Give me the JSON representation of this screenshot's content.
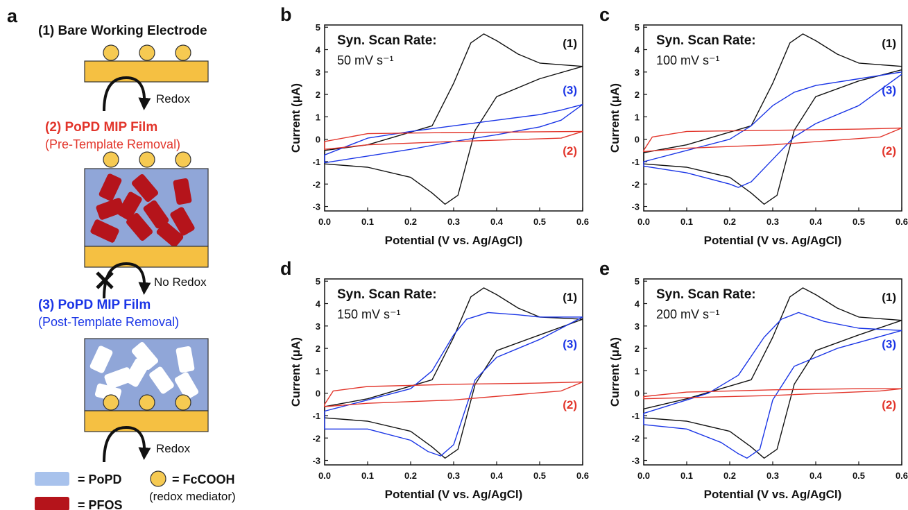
{
  "schematic": {
    "panel_letter": "a",
    "step1_title": "(1) Bare Working Electrode",
    "redox_label": "Redox",
    "step2_title": "(2) PoPD MIP Film",
    "step2_subtitle": "(Pre-Template Removal)",
    "no_redox_label": "No Redox",
    "step3_title": "(3) PoPD MIP Film",
    "step3_subtitle": "(Post-Template Removal)",
    "redox_label_2": "Redox",
    "legend_popd": "= PoPD",
    "legend_fcooh": "= FcCOOH",
    "legend_mediator": "(redox mediator)",
    "legend_pfos": "= PFOS",
    "colors": {
      "electrode": "#f5c042",
      "film": "#90a6d8",
      "pfos": "#b5141b",
      "step2": "#e2352b",
      "step3": "#1a35e6",
      "mediator": "#f6ca52"
    }
  },
  "chart_data": [
    {
      "panel": "b",
      "type": "line",
      "annotation_title": "Syn. Scan Rate:",
      "annotation_rate": "50 mV s⁻¹",
      "xlabel": "Potential (V vs. Ag/AgCl)",
      "ylabel": "Current (μA)",
      "xlim": [
        0,
        0.6
      ],
      "ylim": [
        -3.2,
        5.1
      ],
      "xticks": [
        "0.0",
        "0.1",
        "0.2",
        "0.3",
        "0.4",
        "0.5",
        "0.6"
      ],
      "yticks": [
        "-3",
        "-2",
        "-1",
        "0",
        "1",
        "2",
        "3",
        "4",
        "5"
      ],
      "series": [
        {
          "name": "(1)",
          "color": "#111111",
          "x": [
            0.6,
            0.5,
            0.45,
            0.4,
            0.37,
            0.34,
            0.3,
            0.25,
            0.1,
            0.0,
            0.0,
            0.1,
            0.2,
            0.25,
            0.28,
            0.31,
            0.35,
            0.4,
            0.5,
            0.6
          ],
          "y": [
            3.25,
            3.4,
            3.8,
            4.4,
            4.7,
            4.3,
            2.5,
            0.6,
            -0.25,
            -0.5,
            -1.1,
            -1.25,
            -1.7,
            -2.4,
            -2.9,
            -2.5,
            0.4,
            1.9,
            2.7,
            3.25
          ]
        },
        {
          "name": "(3)",
          "color": "#1a35e6",
          "x": [
            0.6,
            0.55,
            0.5,
            0.4,
            0.3,
            0.2,
            0.1,
            0.0,
            0.0,
            0.1,
            0.2,
            0.3,
            0.4,
            0.5,
            0.55,
            0.6
          ],
          "y": [
            1.55,
            1.3,
            1.1,
            0.85,
            0.6,
            0.35,
            0.05,
            -0.7,
            -1.05,
            -0.75,
            -0.45,
            -0.1,
            0.2,
            0.55,
            0.85,
            1.55
          ]
        },
        {
          "name": "(2)",
          "color": "#e2352b",
          "x": [
            0.6,
            0.3,
            0.1,
            0.0,
            0.0,
            0.1,
            0.3,
            0.55,
            0.6
          ],
          "y": [
            0.35,
            0.3,
            0.25,
            -0.1,
            -0.45,
            -0.25,
            -0.1,
            0.05,
            0.35
          ]
        }
      ]
    },
    {
      "panel": "c",
      "type": "line",
      "annotation_title": "Syn. Scan Rate:",
      "annotation_rate": "100 mV s⁻¹",
      "xlabel": "Potential (V vs. Ag/AgCl)",
      "ylabel": "Current (μA)",
      "xlim": [
        0,
        0.6
      ],
      "ylim": [
        -3.2,
        5.1
      ],
      "xticks": [
        "0.0",
        "0.1",
        "0.2",
        "0.3",
        "0.4",
        "0.5",
        "0.6"
      ],
      "yticks": [
        "-3",
        "-2",
        "-1",
        "0",
        "1",
        "2",
        "3",
        "4",
        "5"
      ],
      "series": [
        {
          "name": "(1)",
          "color": "#111111",
          "x": [
            0.6,
            0.5,
            0.45,
            0.4,
            0.37,
            0.34,
            0.3,
            0.25,
            0.1,
            0.0,
            0.0,
            0.1,
            0.2,
            0.25,
            0.28,
            0.31,
            0.35,
            0.4,
            0.5,
            0.6
          ],
          "y": [
            3.25,
            3.4,
            3.8,
            4.4,
            4.7,
            4.3,
            2.5,
            0.6,
            -0.25,
            -0.6,
            -1.1,
            -1.25,
            -1.7,
            -2.4,
            -2.9,
            -2.5,
            0.4,
            1.9,
            2.6,
            3.1
          ]
        },
        {
          "name": "(3)",
          "color": "#1a35e6",
          "x": [
            0.6,
            0.5,
            0.4,
            0.35,
            0.3,
            0.25,
            0.2,
            0.1,
            0.0,
            0.0,
            0.1,
            0.2,
            0.22,
            0.25,
            0.3,
            0.35,
            0.4,
            0.5,
            0.6
          ],
          "y": [
            3.0,
            2.7,
            2.4,
            2.1,
            1.5,
            0.6,
            0.0,
            -0.5,
            -1.0,
            -1.2,
            -1.5,
            -2.0,
            -2.15,
            -1.9,
            -0.9,
            0.1,
            0.7,
            1.5,
            2.9
          ]
        },
        {
          "name": "(2)",
          "color": "#e2352b",
          "x": [
            0.6,
            0.5,
            0.3,
            0.1,
            0.02,
            0.0,
            0.0,
            0.1,
            0.3,
            0.55,
            0.6
          ],
          "y": [
            0.5,
            0.45,
            0.4,
            0.35,
            0.1,
            -0.5,
            -0.55,
            -0.4,
            -0.25,
            0.1,
            0.5
          ]
        }
      ]
    },
    {
      "panel": "d",
      "type": "line",
      "annotation_title": "Syn. Scan Rate:",
      "annotation_rate": "150 mV s⁻¹",
      "xlabel": "Potential (V vs. Ag/AgCl)",
      "ylabel": "Current (μA)",
      "xlim": [
        0,
        0.6
      ],
      "ylim": [
        -3.2,
        5.1
      ],
      "xticks": [
        "0.0",
        "0.1",
        "0.2",
        "0.3",
        "0.4",
        "0.5",
        "0.6"
      ],
      "yticks": [
        "-3",
        "-2",
        "-1",
        "0",
        "1",
        "2",
        "3",
        "4",
        "5"
      ],
      "series": [
        {
          "name": "(1)",
          "color": "#111111",
          "x": [
            0.6,
            0.5,
            0.45,
            0.4,
            0.37,
            0.34,
            0.3,
            0.25,
            0.1,
            0.0,
            0.0,
            0.1,
            0.2,
            0.25,
            0.28,
            0.31,
            0.35,
            0.4,
            0.5,
            0.6
          ],
          "y": [
            3.3,
            3.4,
            3.8,
            4.4,
            4.7,
            4.3,
            2.5,
            0.6,
            -0.25,
            -0.6,
            -1.1,
            -1.25,
            -1.7,
            -2.4,
            -2.9,
            -2.5,
            0.4,
            1.9,
            2.6,
            3.3
          ]
        },
        {
          "name": "(3)",
          "color": "#1a35e6",
          "x": [
            0.6,
            0.5,
            0.45,
            0.38,
            0.33,
            0.3,
            0.25,
            0.2,
            0.1,
            0.0,
            0.0,
            0.1,
            0.2,
            0.24,
            0.27,
            0.3,
            0.35,
            0.4,
            0.5,
            0.6
          ],
          "y": [
            3.4,
            3.4,
            3.5,
            3.6,
            3.3,
            2.6,
            1.0,
            0.2,
            -0.3,
            -0.8,
            -1.6,
            -1.6,
            -2.1,
            -2.6,
            -2.8,
            -2.3,
            0.6,
            1.6,
            2.4,
            3.4
          ]
        },
        {
          "name": "(2)",
          "color": "#e2352b",
          "x": [
            0.6,
            0.5,
            0.3,
            0.1,
            0.02,
            0.0,
            0.0,
            0.1,
            0.3,
            0.55,
            0.6
          ],
          "y": [
            0.5,
            0.45,
            0.4,
            0.3,
            0.1,
            -0.5,
            -0.6,
            -0.45,
            -0.3,
            0.1,
            0.5
          ]
        }
      ]
    },
    {
      "panel": "e",
      "type": "line",
      "annotation_title": "Syn. Scan Rate:",
      "annotation_rate": "200 mV s⁻¹",
      "xlabel": "Potential (V vs. Ag/AgCl)",
      "ylabel": "Current (μA)",
      "xlim": [
        0,
        0.6
      ],
      "ylim": [
        -3.2,
        5.1
      ],
      "xticks": [
        "0.0",
        "0.1",
        "0.2",
        "0.3",
        "0.4",
        "0.5",
        "0.6"
      ],
      "yticks": [
        "-3",
        "-2",
        "-1",
        "0",
        "1",
        "2",
        "3",
        "4",
        "5"
      ],
      "series": [
        {
          "name": "(1)",
          "color": "#111111",
          "x": [
            0.6,
            0.5,
            0.45,
            0.4,
            0.37,
            0.34,
            0.3,
            0.25,
            0.1,
            0.0,
            0.0,
            0.1,
            0.2,
            0.25,
            0.28,
            0.31,
            0.35,
            0.4,
            0.5,
            0.6
          ],
          "y": [
            3.25,
            3.4,
            3.8,
            4.4,
            4.7,
            4.3,
            2.5,
            0.6,
            -0.25,
            -0.7,
            -1.1,
            -1.25,
            -1.7,
            -2.4,
            -2.9,
            -2.5,
            0.4,
            1.9,
            2.6,
            3.25
          ]
        },
        {
          "name": "(3)",
          "color": "#1a35e6",
          "x": [
            0.6,
            0.5,
            0.42,
            0.36,
            0.32,
            0.28,
            0.22,
            0.15,
            0.1,
            0.0,
            0.0,
            0.1,
            0.18,
            0.22,
            0.24,
            0.27,
            0.3,
            0.35,
            0.45,
            0.6
          ],
          "y": [
            2.8,
            2.9,
            3.2,
            3.6,
            3.3,
            2.5,
            0.8,
            0.0,
            -0.3,
            -0.9,
            -1.4,
            -1.6,
            -2.2,
            -2.7,
            -2.9,
            -2.5,
            -0.3,
            1.2,
            2.0,
            2.8
          ]
        },
        {
          "name": "(2)",
          "color": "#e2352b",
          "x": [
            0.6,
            0.5,
            0.3,
            0.1,
            0.0,
            0.0,
            0.1,
            0.3,
            0.55,
            0.6
          ],
          "y": [
            0.2,
            0.2,
            0.15,
            0.05,
            -0.15,
            -0.25,
            -0.2,
            -0.1,
            0.1,
            0.2
          ]
        }
      ]
    }
  ]
}
